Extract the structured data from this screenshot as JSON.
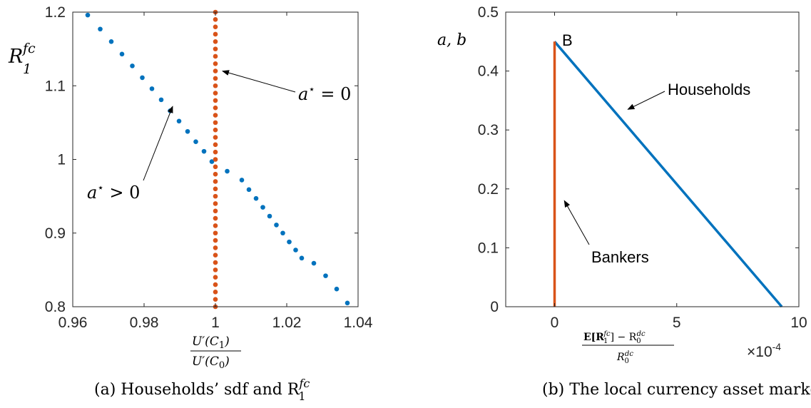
{
  "chart_data": [
    {
      "type": "scatter",
      "caption": "(a) Households’ sdf and R",
      "caption_sub": "1",
      "caption_sup": "fc",
      "ylabel": {
        "base": "R",
        "sup": "fc",
        "sub": "1"
      },
      "xlabel": {
        "num": "U′(C",
        "num_sub": "1",
        "num_end": ")",
        "den": "U′(C",
        "den_sub": "0",
        "den_end": ")"
      },
      "xlim": [
        0.96,
        1.04
      ],
      "ylim": [
        0.8,
        1.2
      ],
      "xticks": [
        0.96,
        0.98,
        1,
        1.02,
        1.04
      ],
      "xtick_labels": [
        "0.96",
        "0.98",
        "1",
        "1.02",
        "1.04"
      ],
      "yticks": [
        0.8,
        0.9,
        1,
        1.1,
        1.2
      ],
      "ytick_labels": [
        "0.8",
        "0.9",
        "1",
        "1.1",
        "1.2"
      ],
      "series": [
        {
          "color": "#0072BD",
          "x": [
            0.9642,
            0.9677,
            0.9708,
            0.9738,
            0.9767,
            0.9795,
            0.9822,
            0.9848,
            0.9873,
            0.9898,
            0.9922,
            0.9945,
            0.9968,
            0.999,
            1.0033,
            1.0074,
            1.0094,
            1.0114,
            1.0133,
            1.0152,
            1.0171,
            1.0189,
            1.0207,
            1.0225,
            1.0242,
            1.0276,
            1.0309,
            1.034,
            1.037
          ],
          "y": [
            1.196,
            1.177,
            1.16,
            1.143,
            1.127,
            1.111,
            1.096,
            1.081,
            1.066,
            1.052,
            1.038,
            1.024,
            1.011,
            0.997,
            0.984,
            0.972,
            0.959,
            0.947,
            0.935,
            0.923,
            0.911,
            0.9,
            0.888,
            0.877,
            0.866,
            0.859,
            0.842,
            0.824,
            0.805
          ]
        },
        {
          "color": "#D95319",
          "x": [
            1,
            1,
            1,
            1,
            1,
            1,
            1,
            1,
            1,
            1,
            1,
            1,
            1,
            1,
            1,
            1,
            1,
            1,
            1,
            1,
            1,
            1,
            1,
            1,
            1,
            1,
            1,
            1,
            1,
            1,
            1,
            1,
            1,
            1,
            1,
            1,
            1,
            1,
            1,
            1,
            1
          ],
          "y": [
            0.8,
            0.81,
            0.82,
            0.83,
            0.84,
            0.85,
            0.86,
            0.87,
            0.88,
            0.89,
            0.9,
            0.91,
            0.92,
            0.93,
            0.94,
            0.95,
            0.96,
            0.97,
            0.98,
            0.99,
            1.0,
            1.01,
            1.02,
            1.03,
            1.04,
            1.05,
            1.06,
            1.07,
            1.08,
            1.09,
            1.1,
            1.11,
            1.12,
            1.13,
            1.14,
            1.15,
            1.16,
            1.17,
            1.18,
            1.19,
            1.2
          ]
        }
      ],
      "annotations": [
        {
          "text": "a",
          "sup": "⋆",
          "rest": " = 0",
          "point": [
            1.002,
            1.12
          ],
          "text_at": [
            1.018,
            1.093
          ]
        },
        {
          "text": "a",
          "sup": "⋆",
          "rest": " > 0",
          "point": [
            0.988,
            1.072
          ],
          "text_at": [
            0.9725,
            0.95
          ]
        }
      ]
    },
    {
      "type": "line",
      "caption": "(b) The local currency asset market",
      "ylabel": "a, b",
      "xlabel": {
        "num": "E[R",
        "num_sub": "1",
        "num_sup": "fc",
        "num_end": "] − R",
        "num_sub2": "0",
        "num_sup2": "dc",
        "den": "R",
        "den_sub": "0",
        "den_sup": "dc"
      },
      "x_exponent_base": "×10",
      "x_exponent": "-4",
      "xlim": [
        -2,
        10
      ],
      "ylim": [
        0,
        0.5
      ],
      "xticks": [
        0,
        5,
        10
      ],
      "xtick_labels": [
        "0",
        "5",
        "10"
      ],
      "yticks": [
        0,
        0.1,
        0.2,
        0.3,
        0.4,
        0.5
      ],
      "ytick_labels": [
        "0",
        "0.1",
        "0.2",
        "0.3",
        "0.4",
        "0.5"
      ],
      "series": [
        {
          "name": "Households",
          "color": "#0072BD",
          "x": [
            0,
            9.3
          ],
          "y": [
            0.45,
            0
          ]
        },
        {
          "name": "Bankers",
          "color": "#D95319",
          "x": [
            0,
            0
          ],
          "y": [
            0,
            0.45
          ]
        }
      ],
      "annotations": [
        {
          "text": "B",
          "point": [
            0.9,
            0.47
          ]
        },
        {
          "text": "Households",
          "point": [
            3.0,
            0.335
          ],
          "text_at": [
            6.7,
            0.415
          ]
        },
        {
          "text": "Bankers",
          "point": [
            0.4,
            0.18
          ],
          "text_at": [
            3.0,
            0.095
          ]
        }
      ]
    }
  ]
}
